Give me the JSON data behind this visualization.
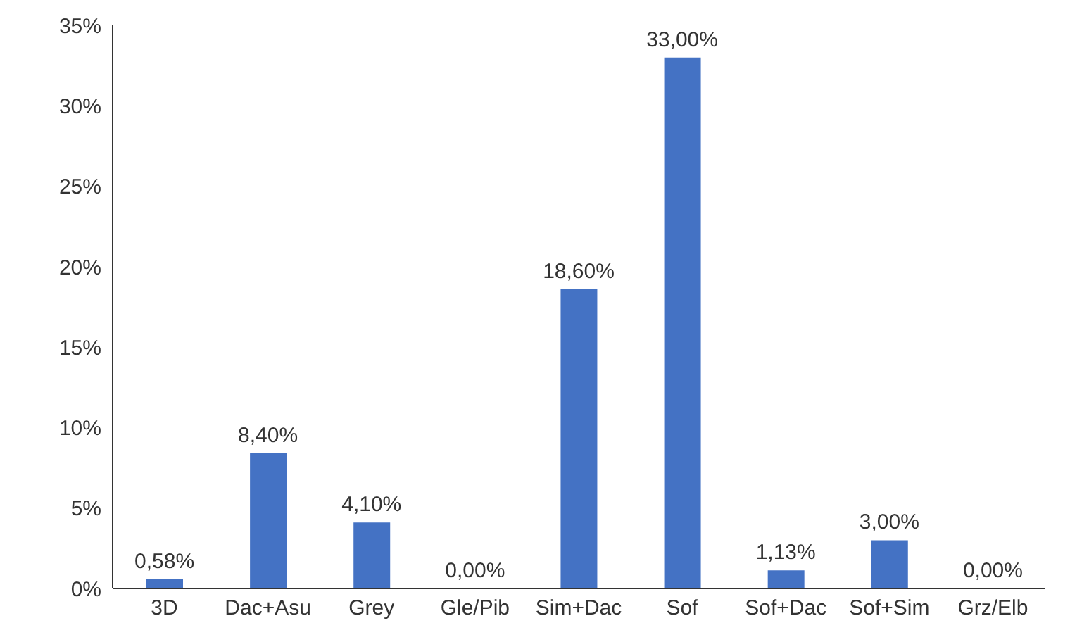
{
  "chart_data": {
    "type": "bar",
    "categories": [
      "3D",
      "Dac+Asu",
      "Grey",
      "Gle/Pib",
      "Sim+Dac",
      "Sof",
      "Sof+Dac",
      "Sof+Sim",
      "Grz/Elb"
    ],
    "values": [
      0.58,
      8.4,
      4.1,
      0,
      18.6,
      33,
      1.13,
      3,
      0
    ],
    "value_labels": [
      "0,58%",
      "8,40%",
      "4,10%",
      "0,00%",
      "18,60%",
      "33,00%",
      "1,13%",
      "3,00%",
      "0,00%"
    ],
    "color": "#4472c4",
    "ylim": [
      0,
      35
    ],
    "yticks": [
      {
        "value": 0,
        "label": "0%"
      },
      {
        "value": 5,
        "label": "5%"
      },
      {
        "value": 10,
        "label": "10%"
      },
      {
        "value": 15,
        "label": "15%"
      },
      {
        "value": 20,
        "label": "20%"
      },
      {
        "value": 25,
        "label": "25%"
      },
      {
        "value": 30,
        "label": "30%"
      },
      {
        "value": 35,
        "label": "35%"
      }
    ],
    "grid": false,
    "legend": false
  }
}
